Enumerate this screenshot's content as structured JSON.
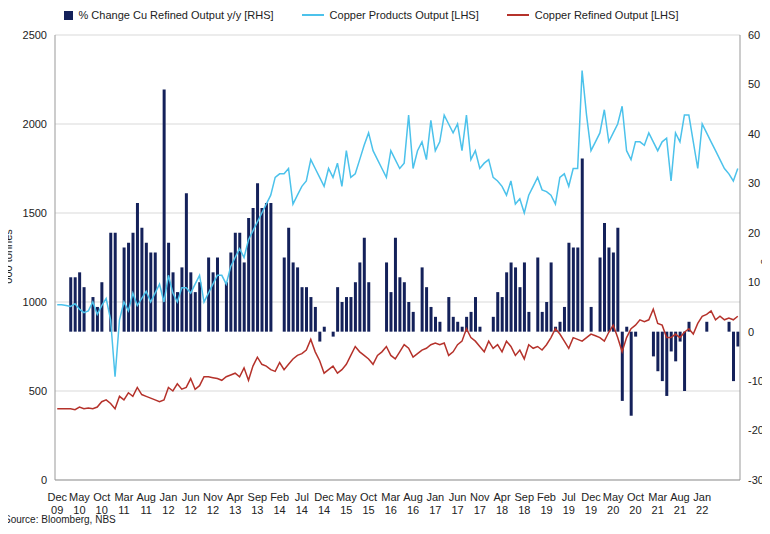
{
  "chart_data": {
    "type": "combo",
    "source": "Source: Bloomberg, NBS",
    "y_label": "'000 tonnes",
    "y2_label": "% Change m/m",
    "grid": true,
    "legend": "top",
    "categories": [
      "Dec 09",
      null,
      null,
      null,
      null,
      "May 10",
      null,
      null,
      null,
      null,
      "Oct 10",
      null,
      null,
      null,
      null,
      "Mar 11",
      null,
      null,
      null,
      null,
      "Aug 11",
      null,
      null,
      null,
      null,
      "Jan 12",
      null,
      null,
      null,
      null,
      "Jun 12",
      null,
      null,
      null,
      null,
      "Nov 12",
      null,
      null,
      null,
      null,
      "Apr 13",
      null,
      null,
      null,
      null,
      "Sep 13",
      null,
      null,
      null,
      null,
      "Feb 14",
      null,
      null,
      null,
      null,
      "Jul 14",
      null,
      null,
      null,
      null,
      "Dec 14",
      null,
      null,
      null,
      null,
      "May 15",
      null,
      null,
      null,
      null,
      "Oct 15",
      null,
      null,
      null,
      null,
      "Mar 16",
      null,
      null,
      null,
      null,
      "Aug 16",
      null,
      null,
      null,
      null,
      "Jan 17",
      null,
      null,
      null,
      null,
      "Jun 17",
      null,
      null,
      null,
      null,
      "Nov 17",
      null,
      null,
      null,
      null,
      "Apr 18",
      null,
      null,
      null,
      null,
      "Sep 18",
      null,
      null,
      null,
      null,
      "Feb 19",
      null,
      null,
      null,
      null,
      "Jul 19",
      null,
      null,
      null,
      null,
      "Dec 19",
      null,
      null,
      null,
      null,
      "May 20",
      null,
      null,
      null,
      null,
      "Oct 20",
      null,
      null,
      null,
      null,
      "Mar 21",
      null,
      null,
      null,
      null,
      "Aug 21",
      null,
      null,
      null,
      null,
      "Jan 22",
      null,
      null,
      null,
      null,
      null,
      null,
      null,
      null
    ],
    "ylim": [
      0,
      2500
    ],
    "yticks": [
      0,
      500,
      1000,
      1500,
      2000,
      2500
    ],
    "y2lim": [
      -30,
      60
    ],
    "y2ticks": [
      -30,
      -20,
      -10,
      0,
      10,
      20,
      30,
      40,
      50,
      60
    ],
    "series": [
      {
        "name": "% Change Cu Refined Output y/y [RHS]",
        "type": "bar",
        "axis": "y2",
        "color": "#14215A",
        "values": [
          null,
          null,
          null,
          11,
          11,
          12,
          9,
          null,
          7,
          5,
          10,
          null,
          20,
          20,
          null,
          17,
          18,
          20,
          26,
          21,
          18,
          16,
          16,
          null,
          49,
          18,
          12,
          8,
          13,
          28,
          12,
          8,
          10,
          null,
          15,
          12,
          15,
          null,
          10,
          16,
          20,
          20,
          14,
          23,
          25,
          30,
          25,
          26,
          26,
          null,
          null,
          15,
          21,
          14,
          13,
          9,
          9,
          7,
          5,
          -2,
          1,
          null,
          -1,
          9,
          6,
          7,
          7,
          10,
          14,
          19,
          10,
          null,
          null,
          null,
          14,
          8,
          19,
          11,
          10,
          6,
          4,
          null,
          13,
          9,
          5,
          3,
          2,
          null,
          7,
          3,
          2,
          1,
          3,
          4,
          7,
          1,
          null,
          null,
          3,
          8,
          7,
          12,
          14,
          13,
          9,
          14,
          4,
          null,
          15,
          4,
          6,
          14,
          1,
          2,
          5,
          18,
          17,
          17,
          35,
          null,
          5,
          null,
          15,
          22,
          17,
          16,
          21,
          -14,
          1,
          -17,
          -1,
          null,
          null,
          null,
          -5,
          -8,
          -10,
          -13,
          -4,
          -6,
          -2,
          -12,
          2,
          null,
          null,
          null,
          2,
          null,
          null,
          null,
          null,
          2,
          -10,
          -3
        ]
      },
      {
        "name": "Copper Products Output [LHS]",
        "type": "line",
        "color": "#4CC2EB",
        "values": [
          985,
          985,
          980,
          975,
          990,
          960,
          940,
          950,
          1000,
          930,
          980,
          1020,
          900,
          580,
          900,
          1000,
          950,
          1050,
          980,
          1020,
          1060,
          1000,
          1050,
          1100,
          1000,
          1150,
          1050,
          1000,
          1080,
          1080,
          1050,
          1100,
          1150,
          1000,
          1050,
          1100,
          1150,
          1150,
          1100,
          1200,
          1250,
          1300,
          1250,
          1350,
          1400,
          1450,
          1500,
          1550,
          1600,
          1700,
          1720,
          1720,
          1750,
          1550,
          1600,
          1650,
          1680,
          1800,
          1750,
          1700,
          1650,
          1750,
          1700,
          1780,
          1650,
          1850,
          1700,
          1720,
          1800,
          1880,
          1950,
          1850,
          1800,
          1750,
          1700,
          1850,
          1800,
          1750,
          1780,
          2050,
          1750,
          1850,
          1900,
          1800,
          2020,
          1850,
          1900,
          2050,
          2000,
          1950,
          2000,
          1850,
          2050,
          1800,
          1850,
          1750,
          1780,
          1800,
          1700,
          1680,
          1650,
          1600,
          1680,
          1550,
          1580,
          1500,
          1600,
          1650,
          1700,
          1630,
          1620,
          1600,
          1550,
          1700,
          1720,
          1650,
          1750,
          1750,
          2300,
          2050,
          1850,
          1900,
          1950,
          2080,
          1900,
          1950,
          2000,
          2100,
          1850,
          1800,
          1900,
          1900,
          1880,
          1950,
          1900,
          1850,
          1900,
          1920,
          1680,
          1950,
          1900,
          2050,
          2050,
          1900,
          1750,
          2000,
          1950,
          1900,
          1850,
          1800,
          1750,
          1720,
          1680,
          1750
        ]
      },
      {
        "name": "Copper Refined Output [LHS]",
        "type": "line",
        "color": "#B5322B",
        "values": [
          400,
          400,
          400,
          400,
          395,
          410,
          400,
          405,
          400,
          410,
          440,
          450,
          430,
          400,
          470,
          450,
          490,
          470,
          520,
          480,
          470,
          460,
          450,
          440,
          450,
          520,
          500,
          540,
          510,
          520,
          570,
          510,
          530,
          580,
          580,
          575,
          570,
          560,
          580,
          590,
          600,
          580,
          630,
          560,
          640,
          690,
          650,
          640,
          620,
          610,
          660,
          620,
          650,
          680,
          700,
          710,
          730,
          790,
          720,
          670,
          600,
          620,
          640,
          600,
          620,
          650,
          700,
          750,
          720,
          700,
          680,
          650,
          700,
          720,
          750,
          700,
          680,
          720,
          760,
          740,
          690,
          710,
          730,
          740,
          760,
          770,
          760,
          770,
          700,
          720,
          760,
          780,
          850,
          800,
          780,
          750,
          720,
          780,
          740,
          760,
          720,
          780,
          750,
          700,
          730,
          680,
          760,
          740,
          750,
          730,
          760,
          800,
          850,
          820,
          780,
          740,
          800,
          790,
          780,
          800,
          820,
          810,
          800,
          780,
          830,
          870,
          800,
          720,
          800,
          850,
          870,
          900,
          890,
          900,
          960,
          880,
          870,
          800,
          800,
          820,
          800,
          830,
          850,
          820,
          880,
          920,
          930,
          950,
          900,
          920,
          900,
          910,
          900,
          920
        ]
      }
    ]
  }
}
